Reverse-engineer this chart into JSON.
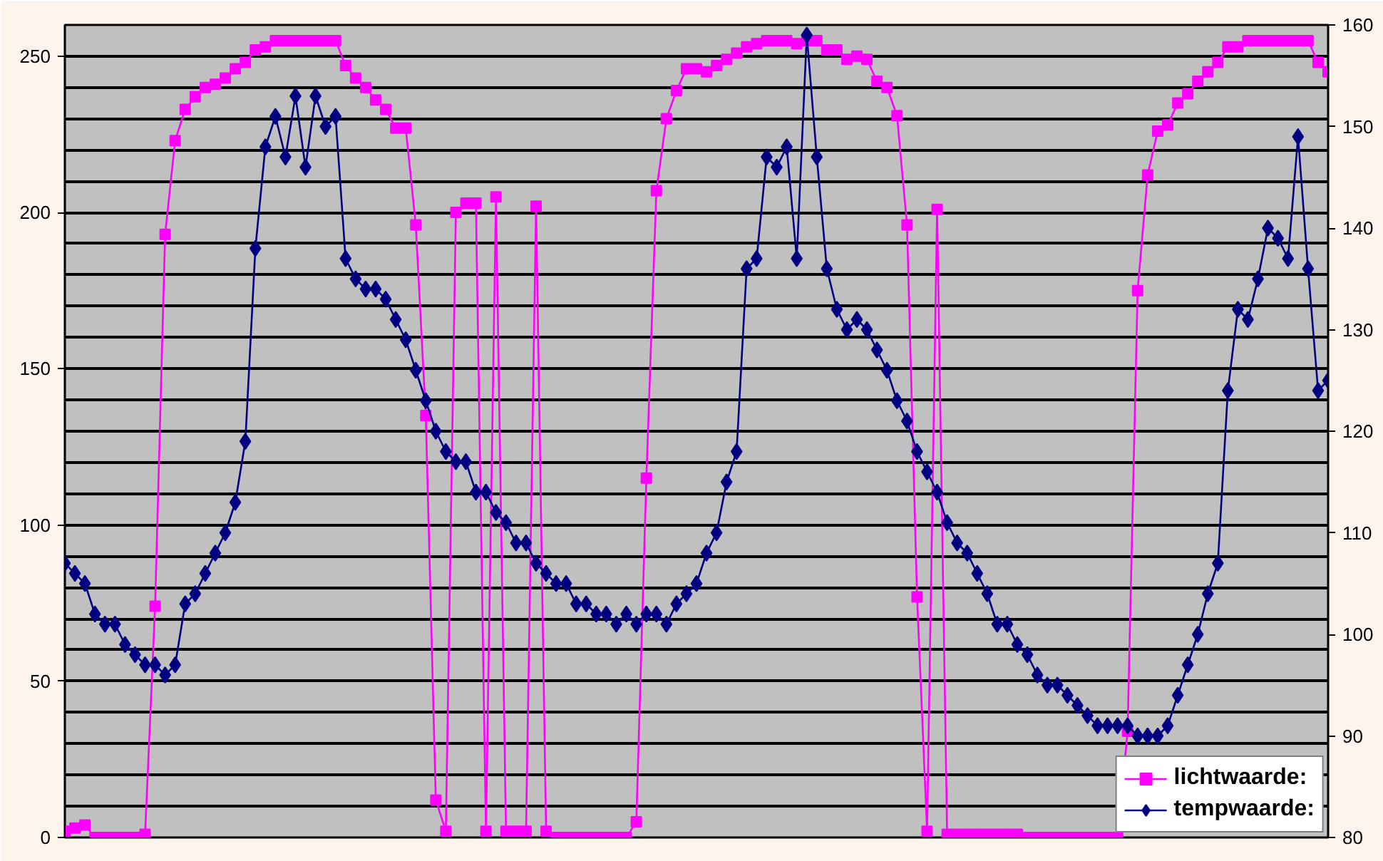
{
  "chart_data": {
    "type": "line",
    "categories": [
      null,
      null,
      null,
      null,
      null,
      null,
      null,
      null,
      null,
      null,
      null,
      null,
      null,
      null,
      null,
      null,
      null,
      null,
      null,
      null,
      null,
      null,
      null,
      null,
      null,
      null,
      null,
      null,
      null,
      null,
      null,
      null,
      null,
      null,
      null,
      null,
      null,
      null,
      null,
      null,
      null,
      null,
      null,
      null,
      null,
      null,
      null,
      null,
      null,
      null,
      null,
      null,
      null,
      null,
      null,
      null,
      null,
      null,
      null,
      null,
      null,
      null,
      null,
      null,
      null,
      null,
      null,
      null,
      null,
      null,
      null,
      null,
      null,
      null,
      null,
      null,
      null,
      null,
      null,
      null,
      null,
      null,
      null,
      null,
      null,
      null,
      null,
      null,
      null,
      null,
      null,
      null,
      null,
      null,
      null,
      null,
      null,
      null,
      null,
      null,
      null,
      null,
      null,
      null,
      null,
      null,
      null,
      null,
      null,
      null,
      null,
      null,
      null,
      null,
      null,
      null,
      null,
      null,
      null,
      null,
      null,
      null,
      null,
      null,
      null,
      null,
      null
    ],
    "series": [
      {
        "name": "lichtwaarde:",
        "color": "#ff00ff",
        "marker": "square",
        "values": [
          2,
          3,
          4,
          0,
          0,
          0,
          0,
          0,
          1,
          74,
          193,
          223,
          233,
          237,
          240,
          241,
          243,
          246,
          248,
          252,
          253,
          255,
          255,
          255,
          255,
          255,
          255,
          255,
          247,
          243,
          240,
          236,
          233,
          227,
          227,
          196,
          135,
          12,
          2,
          200,
          203,
          203,
          2,
          205,
          2,
          2,
          2,
          202,
          2,
          0,
          0,
          0,
          0,
          0,
          0,
          0,
          0,
          5,
          115,
          207,
          230,
          239,
          246,
          246,
          245,
          247,
          249,
          251,
          253,
          254,
          255,
          255,
          255,
          254,
          255,
          255,
          252,
          252,
          249,
          250,
          249,
          242,
          240,
          231,
          196,
          77,
          2,
          201,
          1,
          1,
          1,
          1,
          1,
          1,
          1,
          1,
          0,
          0,
          0,
          0,
          0,
          0,
          0,
          0,
          0,
          0,
          34,
          175,
          212,
          226,
          228,
          235,
          238,
          242,
          245,
          248,
          253,
          253,
          255,
          255,
          255,
          255,
          255,
          255,
          255,
          248,
          245
        ]
      },
      {
        "name": "tempwaarde:",
        "color": "#000080",
        "marker": "diamond",
        "axis": "y2",
        "values": [
          107,
          106,
          105,
          102,
          101,
          101,
          99,
          98,
          97,
          97,
          96,
          97,
          103,
          104,
          106,
          108,
          110,
          113,
          119,
          138,
          148,
          151,
          147,
          153,
          146,
          153,
          150,
          151,
          137,
          135,
          134,
          134,
          133,
          131,
          129,
          126,
          123,
          120,
          118,
          117,
          117,
          114,
          114,
          112,
          111,
          109,
          109,
          107,
          106,
          105,
          105,
          103,
          103,
          102,
          102,
          101,
          102,
          101,
          102,
          102,
          101,
          103,
          104,
          105,
          108,
          110,
          115,
          118,
          136,
          137,
          147,
          146,
          148,
          137,
          159,
          147,
          136,
          132,
          130,
          131,
          130,
          128,
          126,
          123,
          121,
          118,
          116,
          114,
          111,
          109,
          108,
          106,
          104,
          101,
          101,
          99,
          98,
          96,
          95,
          95,
          94,
          93,
          92,
          91,
          91,
          91,
          91,
          90,
          90,
          90,
          91,
          94,
          97,
          100,
          104,
          107,
          124,
          132,
          131,
          135,
          140,
          139,
          137,
          149,
          136,
          124,
          125
        ]
      }
    ],
    "ylim": [
      0,
      260
    ],
    "yticks": [
      0,
      {
        "value": 10,
        "label": null
      },
      {
        "value": 20,
        "label": null
      },
      {
        "value": 30,
        "label": null
      },
      {
        "value": 40,
        "label": null
      },
      50,
      {
        "value": 60,
        "label": null
      },
      {
        "value": 70,
        "label": null
      },
      {
        "value": 80,
        "label": null
      },
      {
        "value": 90,
        "label": null
      },
      100,
      {
        "value": 110,
        "label": null
      },
      {
        "value": 120,
        "label": null
      },
      {
        "value": 130,
        "label": null
      },
      {
        "value": 140,
        "label": null
      },
      150,
      {
        "value": 160,
        "label": null
      },
      {
        "value": 170,
        "label": null
      },
      {
        "value": 180,
        "label": null
      },
      {
        "value": 190,
        "label": null
      },
      200,
      {
        "value": 210,
        "label": null
      },
      {
        "value": 220,
        "label": null
      },
      {
        "value": 230,
        "label": null
      },
      {
        "value": 240,
        "label": null
      },
      250
    ],
    "y2lim": [
      80,
      160
    ],
    "y2ticks": [
      80,
      90,
      100,
      110,
      120,
      130,
      140,
      150,
      160
    ],
    "tick_labels": "y",
    "grid": "y",
    "legend": "bottom right",
    "line_style": "solid"
  }
}
